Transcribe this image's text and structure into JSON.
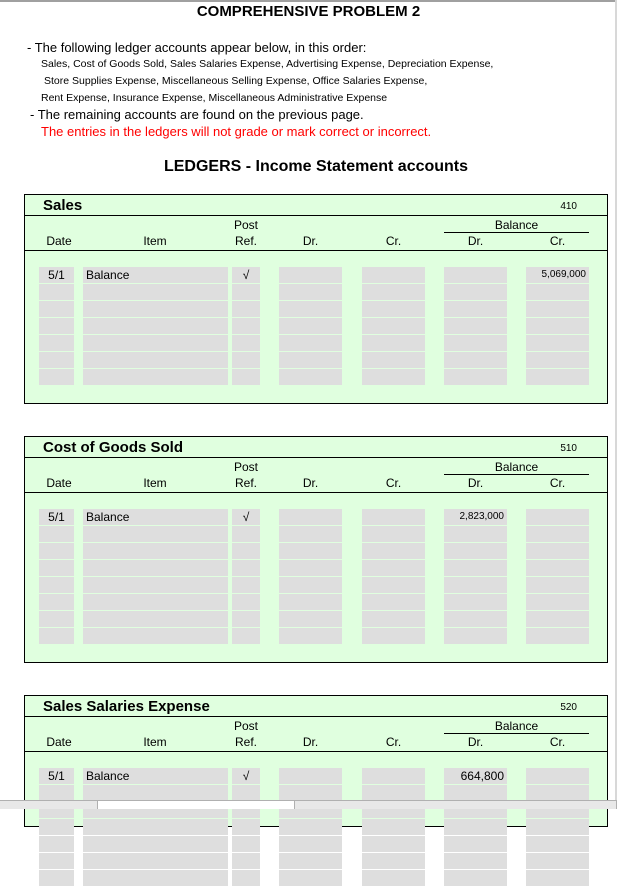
{
  "title": "COMPREHENSIVE PROBLEM 2",
  "intro": {
    "line1": "-  The following ledger accounts appear below, in this order:",
    "list1": "Sales,  Cost of Goods Sold, Sales Salaries Expense, Advertising Expense, Depreciation Expense,",
    "list2": "Store Supplies Expense, Miscellaneous Selling Expense, Office Salaries Expense,",
    "list3": "Rent Expense, Insurance Expense, Miscellaneous Administrative Expense",
    "line2": " - The remaining accounts are found on the previous page.",
    "warning": "The entries in the ledgers will not grade or mark correct or incorrect."
  },
  "section_title": "LEDGERS - Income Statement accounts",
  "headers": {
    "post": "Post",
    "ref": "Ref.",
    "date": "Date",
    "item": "Item",
    "dr": "Dr.",
    "cr": "Cr.",
    "balance": "Balance",
    "bal_dr": "Dr.",
    "bal_cr": "Cr."
  },
  "colors": {
    "panel": "#e0ffdf",
    "cell": "#dedede",
    "warning": "#ff0000"
  },
  "ledgers": [
    {
      "name": "Sales",
      "number": "410",
      "entry": {
        "date": "5/1",
        "item": "Balance",
        "ref": "√",
        "dr": "",
        "cr": "",
        "bal_dr": "",
        "bal_cr": "5,069,000"
      }
    },
    {
      "name": "Cost of Goods Sold",
      "number": "510",
      "entry": {
        "date": "5/1",
        "item": "Balance",
        "ref": "√",
        "dr": "",
        "cr": "",
        "bal_dr": "2,823,000",
        "bal_cr": ""
      }
    },
    {
      "name": "Sales Salaries Expense",
      "number": "520",
      "entry": {
        "date": "5/1",
        "item": "Balance",
        "ref": "√",
        "dr": "",
        "cr": "",
        "bal_dr": "664,800",
        "bal_cr": ""
      }
    }
  ]
}
